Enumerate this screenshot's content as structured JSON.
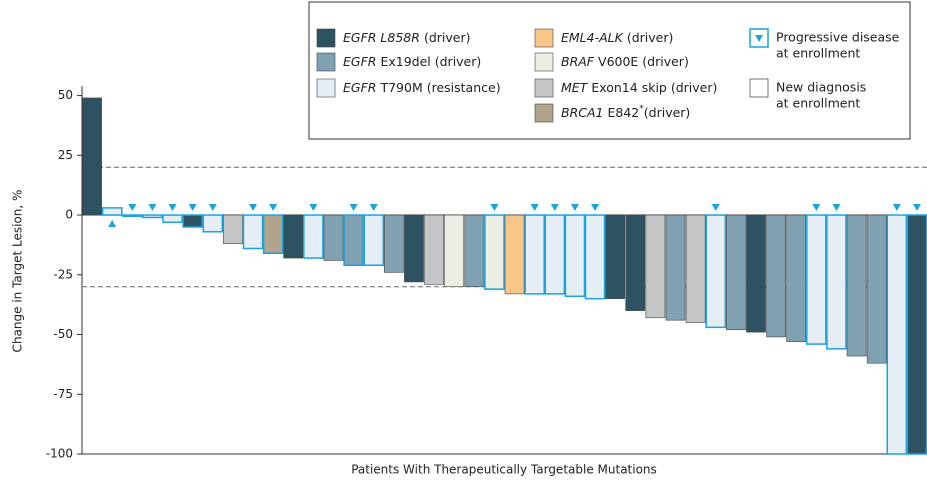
{
  "chart_data": {
    "type": "waterfall",
    "y_label": "Change in Target Lesion, %",
    "x_label": "Patients With Therapeutically Targetable Mutations",
    "ylim": [
      -100,
      54
    ],
    "yticks": [
      50,
      25,
      0,
      -25,
      -50,
      -75,
      -100
    ],
    "reference_lines": [
      20,
      -30
    ],
    "mutation_types": [
      {
        "parts": [
          {
            "text": "EGFR L858R",
            "italic": true
          },
          {
            "text": "(driver)"
          }
        ],
        "color": "#2d5261"
      },
      {
        "parts": [
          {
            "text": "EGFR",
            "italic": true
          },
          {
            "text": "Ex19del (driver)"
          }
        ],
        "color": "#7fa1b2"
      },
      {
        "parts": [
          {
            "text": "EGFR",
            "italic": true
          },
          {
            "text": "T790M (resistance)"
          }
        ],
        "color": "#e5eef4"
      },
      {
        "parts": [
          {
            "text": "EML4-ALK",
            "italic": true
          },
          {
            "text": "(driver)"
          }
        ],
        "color": "#f8c686"
      },
      {
        "parts": [
          {
            "text": "BRAF",
            "italic": true
          },
          {
            "text": "V600E (driver)"
          }
        ],
        "color": "#ecede5"
      },
      {
        "parts": [
          {
            "text": "MET",
            "italic": true
          },
          {
            "text": "Exon14 skip (driver)"
          }
        ],
        "color": "#c4c5c7"
      },
      {
        "parts": [
          {
            "text": "BRCA1",
            "italic": true
          },
          {
            "text": "E842"
          },
          {
            "text": "*",
            "sup": true
          },
          {
            "text": "(driver)"
          }
        ],
        "color": "#b0a48c"
      }
    ],
    "status_legend": {
      "progressive": {
        "lines": [
          "Progressive disease",
          "at enrollment"
        ],
        "color": "#1ba3dc"
      },
      "new": {
        "lines": [
          "New diagnosis",
          "at enrollment"
        ],
        "color": "#555555"
      }
    },
    "values": [
      49,
      3,
      -0.5,
      -1,
      -3,
      -5,
      -7,
      -12,
      -14,
      -16,
      -18,
      -18,
      -19,
      -21,
      -21,
      -24,
      -28,
      -29,
      -30,
      -30,
      -31,
      -33,
      -33,
      -33,
      -34,
      -35,
      -35,
      -40,
      -43,
      -44,
      -45,
      -47,
      -48,
      -49,
      -51,
      -53,
      -54,
      -56,
      -59,
      -62,
      -100,
      -100
    ],
    "mutation": [
      0,
      2,
      2,
      2,
      2,
      0,
      2,
      5,
      2,
      6,
      0,
      2,
      1,
      1,
      2,
      1,
      0,
      5,
      4,
      1,
      4,
      3,
      2,
      2,
      2,
      2,
      0,
      0,
      5,
      1,
      5,
      2,
      1,
      0,
      1,
      1,
      2,
      2,
      1,
      1,
      2,
      0
    ],
    "progressive": [
      false,
      true,
      true,
      true,
      true,
      true,
      true,
      false,
      true,
      true,
      false,
      true,
      false,
      true,
      true,
      false,
      false,
      false,
      false,
      false,
      true,
      false,
      true,
      true,
      true,
      true,
      false,
      false,
      false,
      false,
      false,
      true,
      false,
      false,
      false,
      false,
      true,
      true,
      false,
      false,
      true,
      true
    ]
  }
}
